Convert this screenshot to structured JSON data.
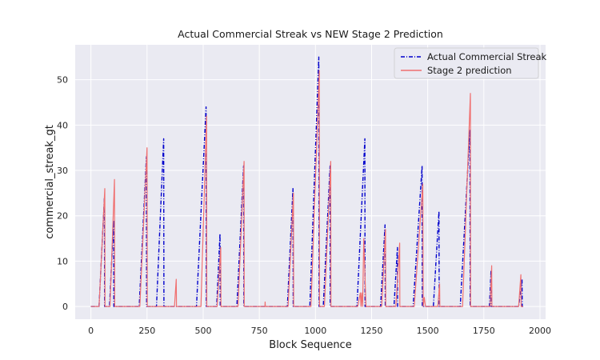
{
  "chart_data": {
    "type": "line",
    "title": "Actual Commercial Streak vs NEW Stage 2 Prediction",
    "xlabel": "Block Sequence",
    "ylabel": "commercial_streak_gt",
    "xlim": [
      -70,
      2025
    ],
    "ylim": [
      -2.8,
      57.7
    ],
    "xticks": [
      0,
      250,
      500,
      750,
      1000,
      1250,
      1500,
      1750,
      2000
    ],
    "yticks": [
      0,
      10,
      20,
      30,
      40,
      50
    ],
    "grid": true,
    "legend_position": "top-right",
    "series": [
      {
        "name": "Actual Commercial Streak",
        "color": "#0000cc",
        "style": "dashdot",
        "x": [
          0,
          36,
          60,
          61,
          83,
          101,
          102,
          215,
          247,
          248,
          292,
          324,
          325,
          470,
          513,
          514,
          560,
          575,
          576,
          650,
          680,
          681,
          875,
          900,
          901,
          975,
          1015,
          1016,
          1035,
          1065,
          1066,
          1185,
          1220,
          1221,
          1290,
          1310,
          1311,
          1350,
          1365,
          1366,
          1435,
          1475,
          1476,
          1525,
          1550,
          1551,
          1645,
          1688,
          1689,
          1775,
          1782,
          1783,
          1905,
          1920,
          1921,
          1925
        ],
        "y": [
          0,
          0,
          24,
          0,
          0,
          19,
          0,
          0,
          33,
          0,
          0,
          37,
          0,
          0,
          44,
          0,
          0,
          16,
          0,
          0,
          31,
          0,
          0,
          26,
          0,
          0,
          55,
          0,
          0,
          31,
          0,
          0,
          37,
          0,
          0,
          18,
          0,
          0,
          13,
          0,
          0,
          31,
          0,
          0,
          21,
          0,
          0,
          39,
          0,
          0,
          8,
          0,
          0,
          6,
          0,
          0
        ]
      },
      {
        "name": "Stage 2 prediction",
        "color": "#f07070",
        "style": "solid",
        "x": [
          0,
          36,
          62,
          63,
          85,
          105,
          106,
          218,
          250,
          251,
          372,
          380,
          381,
          490,
          515,
          516,
          562,
          578,
          579,
          655,
          682,
          683,
          775,
          776,
          777,
          878,
          902,
          903,
          980,
          1017,
          1018,
          1040,
          1068,
          1069,
          1188,
          1200,
          1203,
          1206,
          1210,
          1215,
          1225,
          1226,
          1295,
          1312,
          1313,
          1358,
          1375,
          1376,
          1440,
          1478,
          1480,
          1485,
          1490,
          1492,
          1545,
          1553,
          1554,
          1655,
          1690,
          1691,
          1778,
          1785,
          1786,
          1905,
          1915,
          1916,
          1925
        ],
        "y": [
          0,
          0,
          26,
          0,
          0,
          28,
          0,
          0,
          35,
          0,
          0,
          6,
          0,
          0,
          42,
          0,
          0,
          13,
          0,
          0,
          32,
          0,
          0,
          1,
          0,
          0,
          25,
          0,
          0,
          52,
          0,
          0,
          32,
          0,
          0,
          3,
          0,
          3,
          0,
          15,
          0,
          0,
          0,
          17,
          0,
          0,
          14,
          0,
          0,
          27,
          0,
          2,
          0,
          0,
          0,
          5,
          0,
          0,
          47,
          0,
          0,
          9,
          0,
          0,
          7,
          0,
          0
        ]
      }
    ]
  }
}
